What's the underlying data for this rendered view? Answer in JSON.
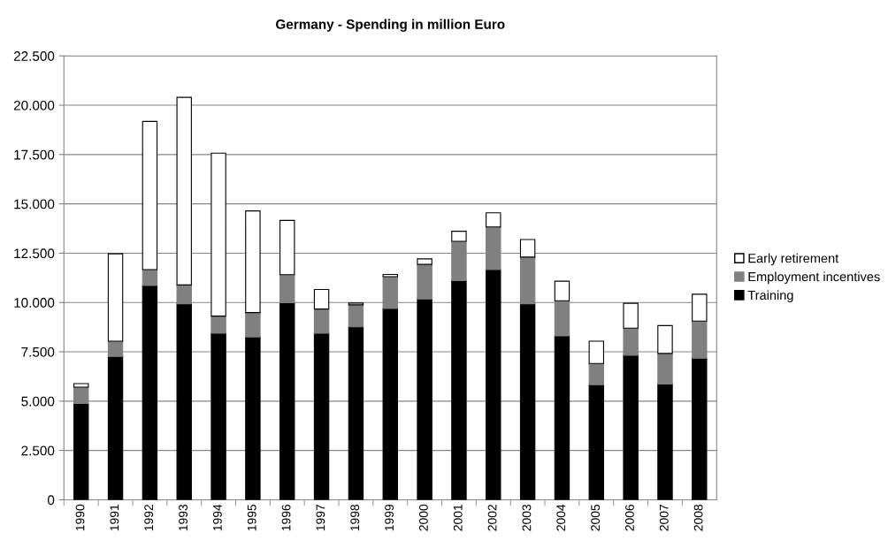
{
  "chart_data": {
    "type": "bar",
    "stacked": true,
    "title": "Germany - Spending in million Euro",
    "categories": [
      "1990",
      "1991",
      "1992",
      "1993",
      "1994",
      "1995",
      "1996",
      "1997",
      "1998",
      "1999",
      "2000",
      "2001",
      "2002",
      "2003",
      "2004",
      "2005",
      "2006",
      "2007",
      "2008"
    ],
    "series": [
      {
        "name": "Training",
        "color": "#000000",
        "values": [
          4880,
          7270,
          10860,
          9940,
          8440,
          8260,
          9990,
          8440,
          8770,
          9700,
          10180,
          11110,
          11670,
          9940,
          8310,
          5830,
          7330,
          5870,
          7180
        ]
      },
      {
        "name": "Employment incentives",
        "color": "#808080",
        "values": [
          830,
          770,
          810,
          950,
          870,
          1230,
          1420,
          1230,
          1110,
          1610,
          1750,
          1990,
          2160,
          2360,
          1780,
          1080,
          1370,
          1550,
          1880
        ]
      },
      {
        "name": "Early retirement",
        "color": "#ffffff",
        "values": [
          180,
          4430,
          7510,
          9510,
          8260,
          5150,
          2750,
          990,
          90,
          110,
          280,
          510,
          720,
          890,
          990,
          1130,
          1260,
          1410,
          1360
        ]
      }
    ],
    "ylim": [
      0,
      22500
    ],
    "yticks": [
      0,
      {
        "value": 2500,
        "label": "2.500"
      },
      {
        "value": 5000,
        "label": "5.000"
      },
      {
        "value": 7500,
        "label": "7.500"
      },
      {
        "value": 10000,
        "label": "10.000"
      },
      {
        "value": 12500,
        "label": "12.500"
      },
      {
        "value": 15000,
        "label": "15.000"
      },
      {
        "value": 17500,
        "label": "17.500"
      },
      {
        "value": 20000,
        "label": "20.000"
      },
      {
        "value": 22500,
        "label": "22.500"
      }
    ],
    "grid": "y",
    "legend": "right"
  }
}
